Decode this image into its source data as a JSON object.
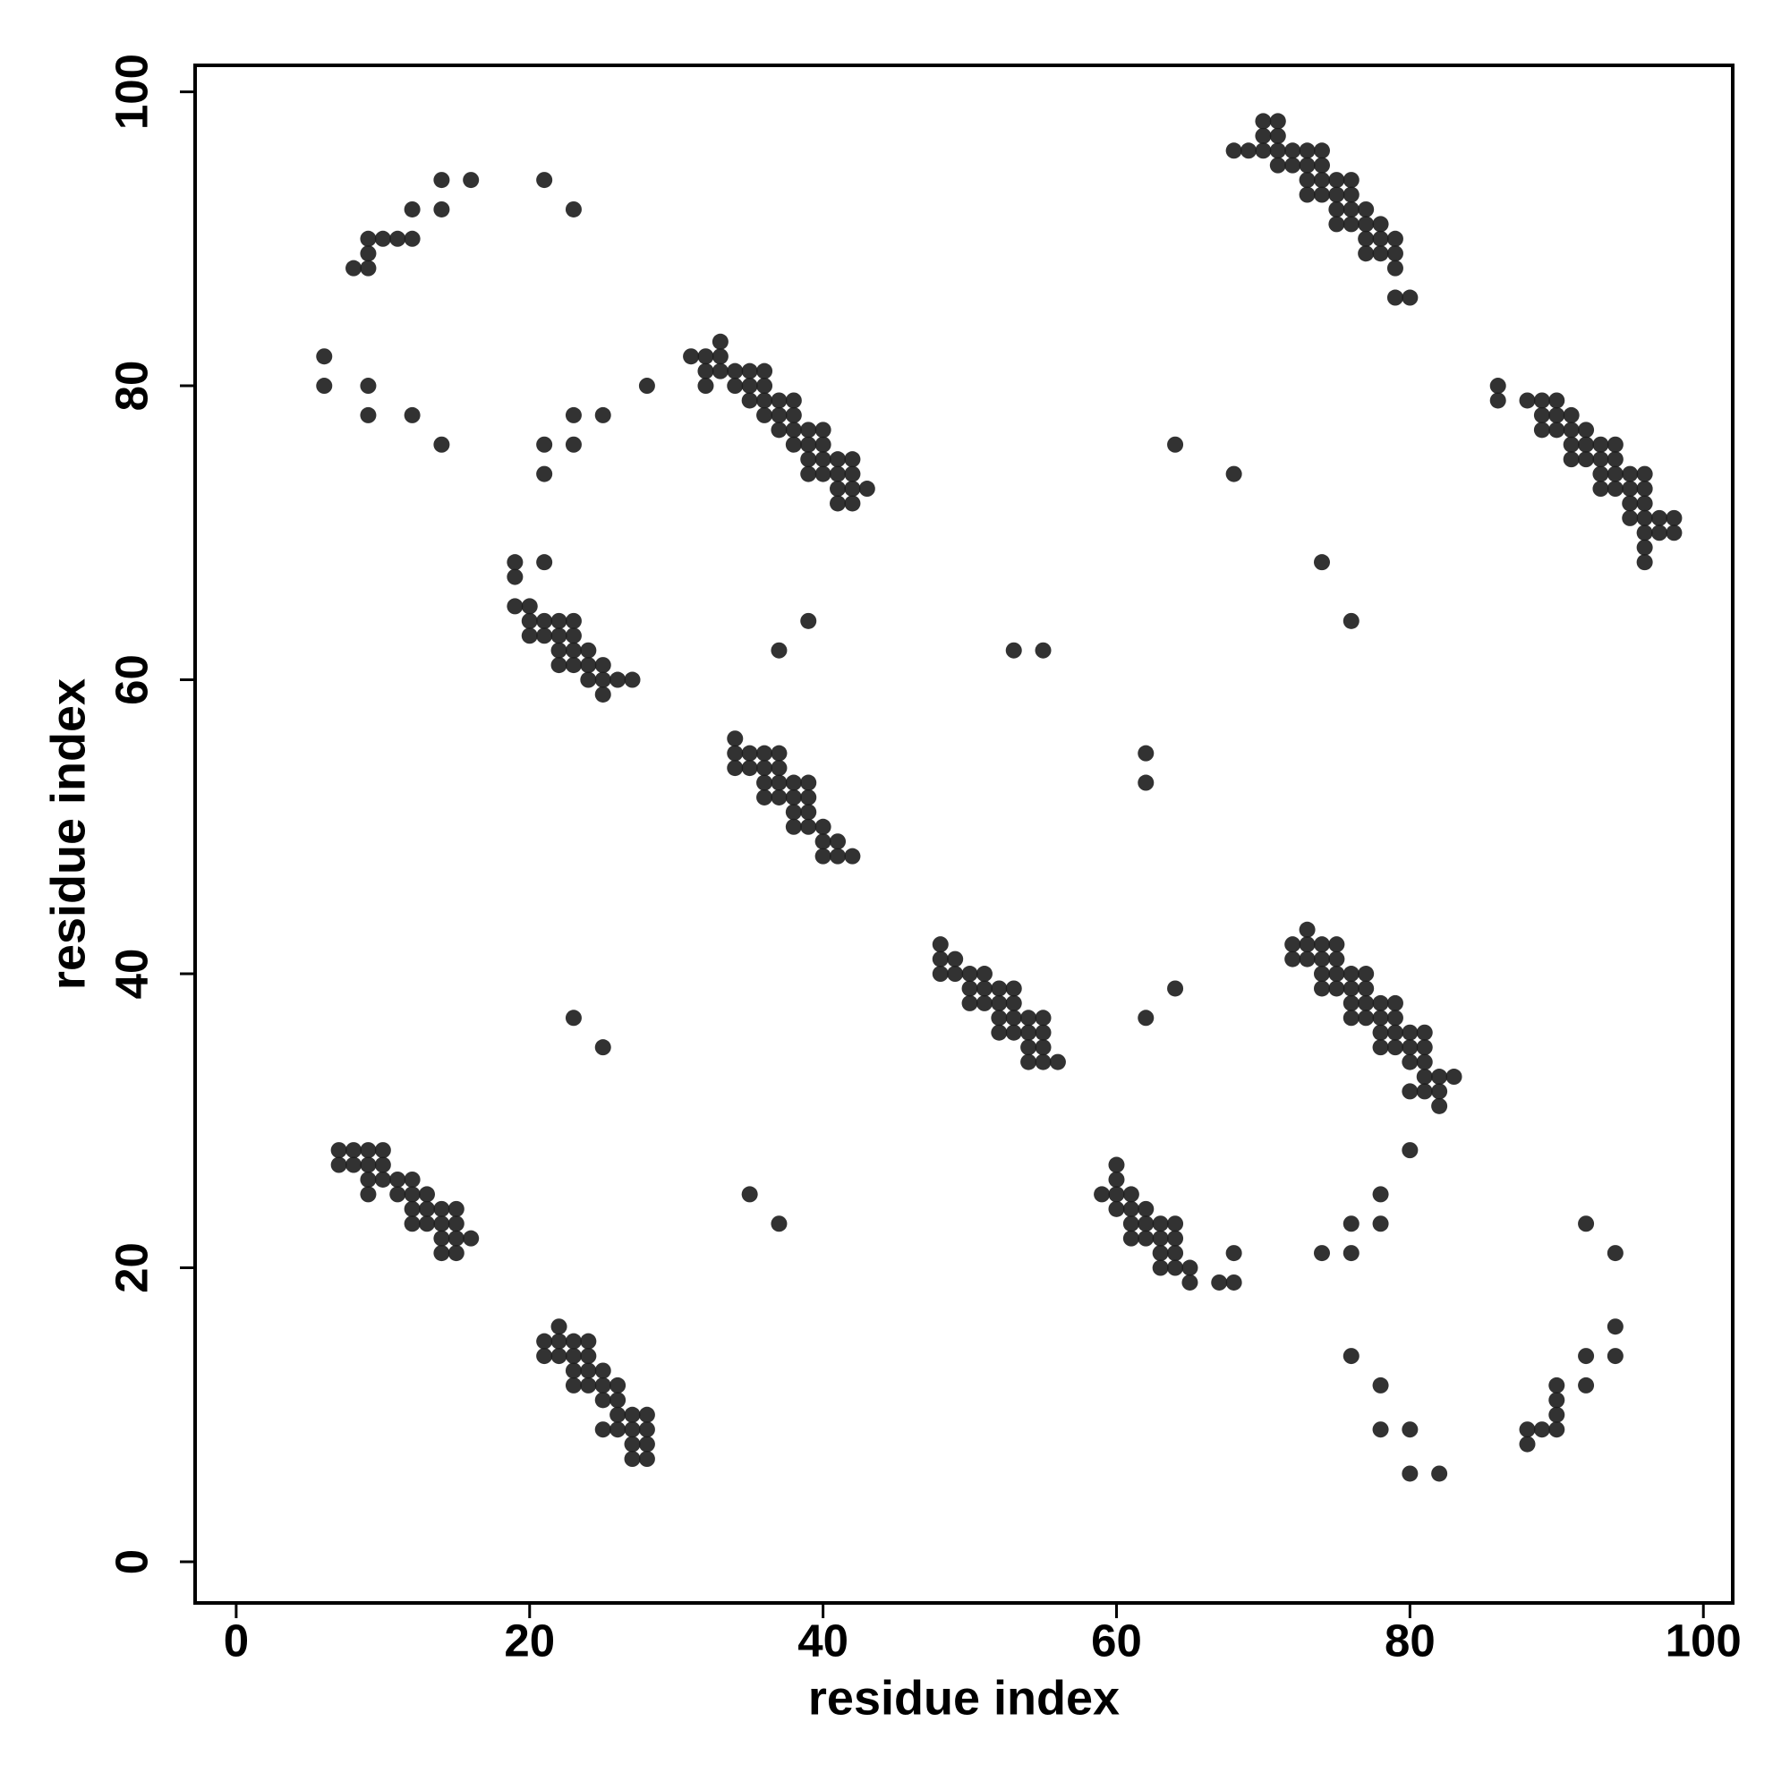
{
  "chart_data": {
    "type": "scatter",
    "x_label": "residue index",
    "y_label": "residue index",
    "color": "#1c1c1c",
    "xlim": [
      -2.8,
      102
    ],
    "ylim": [
      -2.8,
      101.8
    ],
    "xticks": [
      0,
      20,
      40,
      60,
      80,
      100
    ],
    "yticks": [
      0,
      20,
      40,
      60,
      80,
      100
    ],
    "x": [
      8,
      9,
      9,
      9,
      10,
      11,
      12,
      12,
      14,
      14,
      16,
      21,
      23,
      6,
      6,
      9,
      9,
      12,
      14,
      21,
      21,
      23,
      23,
      25,
      28,
      31,
      32,
      32,
      32,
      33,
      33,
      33,
      34,
      34,
      35,
      35,
      35,
      36,
      36,
      36,
      36,
      37,
      37,
      37,
      38,
      38,
      38,
      38,
      39,
      39,
      39,
      39,
      40,
      40,
      40,
      40,
      41,
      41,
      41,
      41,
      42,
      42,
      42,
      42,
      43,
      68,
      69,
      70,
      70,
      70,
      71,
      71,
      71,
      71,
      72,
      72,
      73,
      73,
      73,
      73,
      74,
      74,
      74,
      74,
      75,
      75,
      75,
      75,
      76,
      76,
      76,
      76,
      77,
      77,
      77,
      77,
      78,
      78,
      78,
      79,
      79,
      79,
      79,
      80,
      86,
      86,
      88,
      89,
      89,
      89,
      90,
      90,
      90,
      91,
      91,
      91,
      91,
      92,
      92,
      92,
      93,
      93,
      93,
      93,
      94,
      94,
      94,
      94,
      95,
      95,
      95,
      95,
      96,
      96,
      96,
      96,
      96,
      96,
      96,
      97,
      97,
      98,
      98,
      64,
      68,
      74,
      76,
      53,
      55,
      37,
      39,
      19,
      19,
      21,
      19,
      20,
      20,
      20,
      21,
      21,
      22,
      22,
      22,
      22,
      23,
      23,
      23,
      23,
      24,
      24,
      24,
      25,
      25,
      25,
      26,
      27,
      34,
      34,
      34,
      35,
      35,
      36,
      36,
      36,
      36,
      37,
      37,
      37,
      37,
      38,
      38,
      38,
      38,
      39,
      39,
      39,
      39,
      40,
      40,
      40,
      41,
      41,
      42,
      62,
      62,
      62,
      64,
      23,
      25,
      35,
      37,
      48,
      48,
      48,
      49,
      49,
      50,
      50,
      50,
      51,
      51,
      51,
      52,
      52,
      52,
      52,
      53,
      53,
      53,
      53,
      54,
      54,
      54,
      54,
      55,
      55,
      55,
      55,
      56,
      72,
      72,
      73,
      73,
      73,
      74,
      74,
      74,
      74,
      75,
      75,
      75,
      75,
      76,
      76,
      76,
      76,
      77,
      77,
      77,
      77,
      78,
      78,
      78,
      78,
      79,
      79,
      79,
      79,
      80,
      80,
      80,
      80,
      81,
      81,
      81,
      81,
      81,
      82,
      82,
      82,
      83,
      7,
      7,
      8,
      8,
      9,
      9,
      9,
      9,
      10,
      10,
      10,
      11,
      11,
      12,
      12,
      12,
      12,
      13,
      13,
      13,
      14,
      14,
      14,
      14,
      15,
      15,
      15,
      15,
      16,
      59,
      60,
      60,
      60,
      60,
      61,
      61,
      61,
      61,
      62,
      62,
      62,
      63,
      63,
      63,
      63,
      64,
      64,
      64,
      64,
      65,
      65,
      67,
      68,
      68,
      80,
      78,
      76,
      78,
      74,
      76,
      92,
      94,
      94,
      94,
      92,
      92,
      90,
      90,
      90,
      90,
      89,
      88,
      88,
      76,
      78,
      78,
      80,
      80,
      82,
      21,
      21,
      22,
      22,
      22,
      23,
      23,
      23,
      23,
      24,
      24,
      24,
      24,
      25,
      25,
      25,
      25,
      26,
      26,
      26,
      26,
      27,
      27,
      27,
      27,
      28,
      28,
      28,
      28
    ],
    "values": [
      88,
      88,
      89,
      90,
      90,
      90,
      90,
      92,
      92,
      94,
      94,
      94,
      92,
      82,
      80,
      80,
      78,
      78,
      76,
      76,
      74,
      78,
      76,
      78,
      80,
      82,
      82,
      81,
      80,
      83,
      82,
      81,
      81,
      80,
      81,
      80,
      79,
      81,
      80,
      79,
      78,
      79,
      78,
      77,
      79,
      78,
      77,
      76,
      77,
      76,
      75,
      74,
      77,
      76,
      75,
      74,
      75,
      74,
      73,
      72,
      75,
      74,
      73,
      72,
      73,
      96,
      96,
      98,
      97,
      96,
      98,
      97,
      96,
      95,
      96,
      95,
      96,
      95,
      94,
      93,
      96,
      95,
      94,
      93,
      94,
      93,
      92,
      91,
      94,
      93,
      92,
      91,
      92,
      91,
      90,
      89,
      91,
      90,
      89,
      90,
      89,
      88,
      86,
      86,
      80,
      79,
      79,
      79,
      78,
      77,
      79,
      78,
      77,
      78,
      77,
      76,
      75,
      77,
      76,
      75,
      76,
      75,
      74,
      73,
      76,
      75,
      74,
      73,
      74,
      73,
      72,
      71,
      74,
      73,
      72,
      71,
      70,
      69,
      68,
      71,
      70,
      71,
      70,
      76,
      74,
      68,
      64,
      62,
      62,
      62,
      64,
      68,
      67,
      68,
      65,
      65,
      64,
      63,
      64,
      63,
      64,
      63,
      62,
      61,
      64,
      63,
      62,
      61,
      62,
      61,
      60,
      61,
      60,
      59,
      60,
      60,
      56,
      55,
      54,
      55,
      54,
      55,
      54,
      53,
      52,
      55,
      54,
      53,
      52,
      53,
      52,
      51,
      50,
      53,
      52,
      51,
      50,
      50,
      49,
      48,
      49,
      48,
      48,
      55,
      53,
      37,
      39,
      37,
      35,
      25,
      23,
      42,
      41,
      40,
      41,
      40,
      40,
      39,
      38,
      40,
      39,
      38,
      39,
      38,
      37,
      36,
      39,
      38,
      37,
      36,
      37,
      36,
      35,
      34,
      37,
      36,
      35,
      34,
      34,
      42,
      41,
      43,
      42,
      41,
      42,
      41,
      40,
      39,
      42,
      41,
      40,
      39,
      40,
      39,
      38,
      37,
      40,
      39,
      38,
      37,
      38,
      37,
      36,
      35,
      38,
      37,
      36,
      35,
      36,
      35,
      34,
      32,
      36,
      35,
      34,
      33,
      32,
      33,
      32,
      31,
      33,
      28,
      27,
      28,
      27,
      28,
      27,
      26,
      25,
      28,
      27,
      26,
      26,
      25,
      26,
      25,
      24,
      23,
      25,
      24,
      23,
      24,
      23,
      22,
      21,
      24,
      23,
      22,
      21,
      22,
      25,
      27,
      26,
      25,
      24,
      25,
      24,
      23,
      22,
      24,
      23,
      22,
      23,
      22,
      21,
      20,
      23,
      22,
      21,
      20,
      20,
      19,
      19,
      19,
      21,
      28,
      25,
      23,
      23,
      21,
      21,
      23,
      21,
      16,
      14,
      14,
      12,
      12,
      11,
      10,
      9,
      9,
      9,
      8,
      14,
      12,
      9,
      9,
      6,
      6,
      15,
      14,
      16,
      15,
      14,
      15,
      14,
      13,
      12,
      15,
      14,
      13,
      12,
      13,
      12,
      11,
      9,
      12,
      11,
      10,
      9,
      10,
      9,
      8,
      7,
      10,
      9,
      8,
      7
    ]
  }
}
